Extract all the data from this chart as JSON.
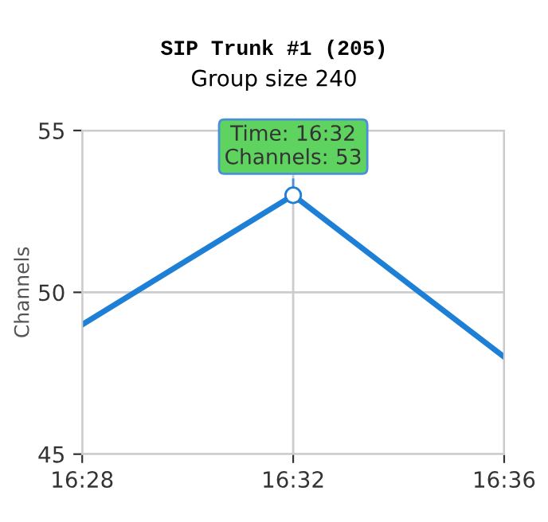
{
  "chart_data": {
    "type": "line",
    "title": "SIP Trunk #1 (205)",
    "subtitle": "Group size 240",
    "ylabel": "Channels",
    "categories": [
      "16:28",
      "16:32",
      "16:36"
    ],
    "series": [
      {
        "color": "#1e7fd6",
        "values": [
          49,
          53,
          48
        ]
      }
    ],
    "ylim": [
      45,
      55
    ],
    "yticks": [
      45,
      50,
      55
    ],
    "grid": true,
    "marker": "none",
    "line_style": "solid",
    "annotations": [
      {
        "text": "Time: 16:32\nChannels: 53",
        "x": "16:32",
        "y": 53
      }
    ]
  }
}
